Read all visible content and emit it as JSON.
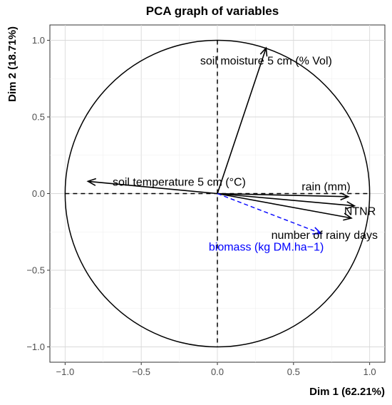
{
  "chart_data": {
    "type": "scatter",
    "subtype": "pca-correlation-circle",
    "title": "PCA graph of variables",
    "xlabel": "Dim 1 (62.21%)",
    "ylabel": "Dim 2 (18.71%)",
    "xlim": [
      -1.1,
      1.1
    ],
    "ylim": [
      -1.1,
      1.1
    ],
    "xticks": [
      -1.0,
      -0.5,
      0.0,
      0.5,
      1.0
    ],
    "yticks": [
      -1.0,
      -0.5,
      0.0,
      0.5,
      1.0
    ],
    "xtick_labels": [
      "−1.0",
      "−0.5",
      "0.0",
      "0.5",
      "1.0"
    ],
    "ytick_labels": [
      "−1.0",
      "−0.5",
      "0.0",
      "0.5",
      "1.0"
    ],
    "grid": true,
    "unit_circle": true,
    "variables": [
      {
        "label": "soil moisture 5 cm (% Vol)",
        "x": 0.32,
        "y": 0.95,
        "color": "#000000",
        "dashed": false,
        "active": true
      },
      {
        "label": "soil temperature 5 cm (°C)",
        "x": -0.85,
        "y": 0.08,
        "color": "#000000",
        "dashed": false,
        "active": true
      },
      {
        "label": "rain (mm)",
        "x": 0.86,
        "y": -0.02,
        "color": "#000000",
        "dashed": false,
        "active": true
      },
      {
        "label": "NTNR",
        "x": 0.9,
        "y": -0.08,
        "color": "#000000",
        "dashed": false,
        "active": true
      },
      {
        "label": "number of rainy days",
        "x": 0.88,
        "y": -0.16,
        "color": "#000000",
        "dashed": false,
        "active": true
      },
      {
        "label": "biomass (kg DM.ha−1)",
        "x": 0.68,
        "y": -0.26,
        "color": "#0000ff",
        "dashed": true,
        "active": false
      }
    ]
  }
}
